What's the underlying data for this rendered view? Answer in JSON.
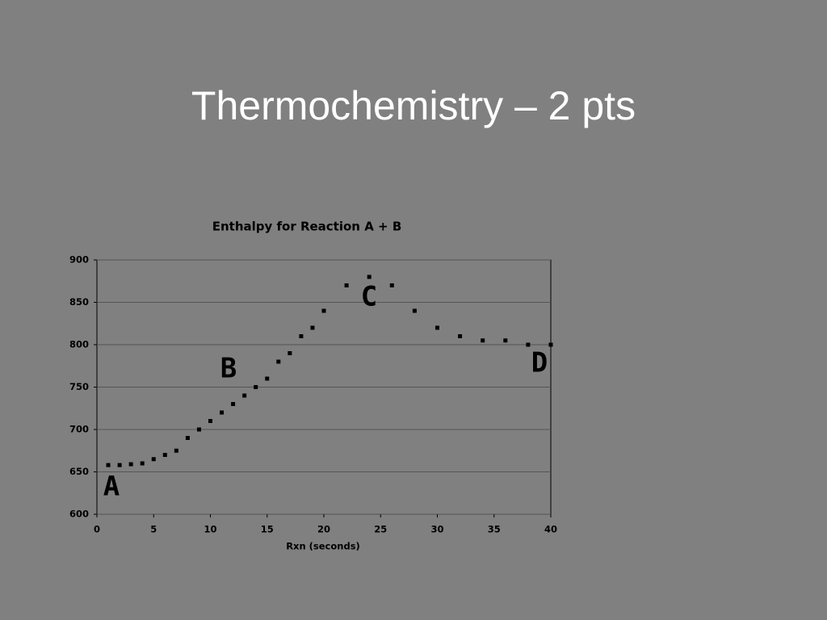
{
  "slide": {
    "title": "Thermochemistry – 2 pts"
  },
  "chart_data": {
    "type": "scatter",
    "title": "Enthalpy for Reaction A + B",
    "xlabel": "Rxn (seconds)",
    "x": [
      1,
      2,
      3,
      4,
      5,
      6,
      7,
      8,
      9,
      10,
      11,
      12,
      13,
      14,
      15,
      16,
      17,
      18,
      19,
      20,
      22,
      24,
      26,
      28,
      30,
      32,
      34,
      36,
      38,
      40
    ],
    "values": [
      658,
      658,
      659,
      660,
      665,
      670,
      675,
      690,
      700,
      710,
      720,
      730,
      740,
      750,
      760,
      780,
      790,
      810,
      820,
      840,
      870,
      880,
      870,
      840,
      820,
      810,
      805,
      805,
      800,
      800
    ],
    "color": "#000000",
    "xlim": [
      0,
      40
    ],
    "xticks": [
      0,
      5,
      10,
      15,
      20,
      25,
      30,
      35,
      40
    ],
    "ylim": [
      600,
      900
    ],
    "yticks": [
      600,
      650,
      700,
      750,
      800,
      850,
      900
    ],
    "grid": true,
    "annotations": [
      "A",
      "B",
      "C",
      "D"
    ]
  }
}
